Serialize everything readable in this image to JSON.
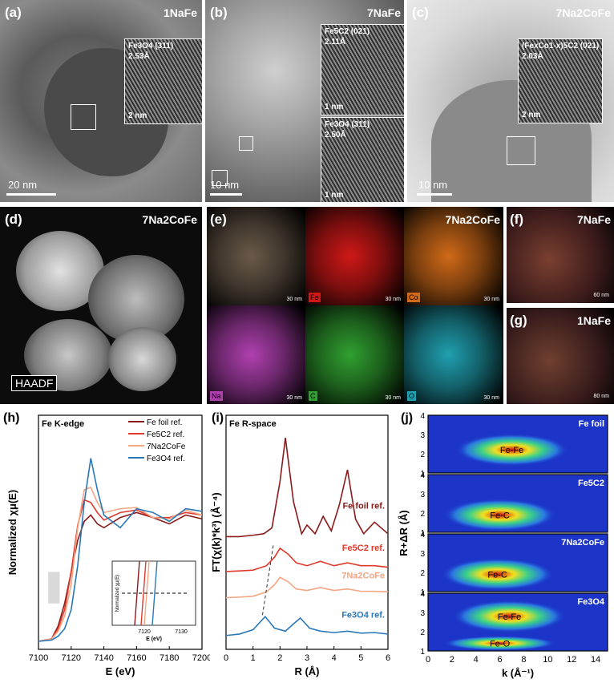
{
  "panel_a": {
    "label": "(a)",
    "sample": "1NaFe",
    "inset_phase": "Fe3O4 (311)",
    "inset_d": "2.53Å",
    "inset_scale": "2 nm",
    "scale": "20 nm"
  },
  "panel_b": {
    "label": "(b)",
    "sample": "7NaFe",
    "inset1_phase": "Fe5C2 (021)",
    "inset1_d": "2.11Å",
    "inset1_scale": "1 nm",
    "inset2_phase": "Fe3O4 (311)",
    "inset2_d": "2.50Å",
    "inset2_scale": "1 nm",
    "scale": "10 nm"
  },
  "panel_c": {
    "label": "(c)",
    "sample": "7Na2CoFe",
    "inset_phase": "(FexCo1-x)5C2 (021)",
    "inset_d": "2.03Å",
    "inset_scale": "2 nm",
    "scale": "10 nm"
  },
  "panel_d": {
    "label": "(d)",
    "sample": "7Na2CoFe",
    "mode": "HAADF"
  },
  "panel_e": {
    "label": "(e)",
    "sample": "7Na2CoFe",
    "maps": [
      {
        "element": "",
        "scale": "30 nm",
        "color": "#6a5a4a"
      },
      {
        "element": "Fe",
        "scale": "30 nm",
        "color": "#d01818"
      },
      {
        "element": "Co",
        "scale": "30 nm",
        "color": "#d06a18"
      },
      {
        "element": "Na",
        "scale": "30 nm",
        "color": "#b040b0"
      },
      {
        "element": "C",
        "scale": "30 nm",
        "color": "#30a030"
      },
      {
        "element": "O",
        "scale": "30 nm",
        "color": "#20a0b0"
      }
    ]
  },
  "panel_f": {
    "label": "(f)",
    "sample": "7NaFe",
    "scale": "60 nm"
  },
  "panel_g": {
    "label": "(g)",
    "sample": "1NaFe",
    "scale": "80 nm"
  },
  "colors": {
    "fe_foil": "#8b1a1a",
    "fe5c2": "#e0392b",
    "na2cofe": "#f4a582",
    "fe3o4": "#2a78b8"
  },
  "chart_data": [
    {
      "type": "line",
      "panel": "(h)",
      "title": "Fe K-edge",
      "xlabel": "E (eV)",
      "ylabel": "Normalized χμ(E)",
      "xlim": [
        7100,
        7200
      ],
      "xticks": [
        7100,
        7120,
        7140,
        7160,
        7180,
        7200
      ],
      "legend": [
        "Fe foil ref.",
        "Fe5C2 ref.",
        "7Na2CoFe",
        "Fe3O4 ref."
      ],
      "series": [
        {
          "name": "Fe foil ref.",
          "x": [
            7100,
            7108,
            7112,
            7116,
            7120,
            7124,
            7128,
            7132,
            7136,
            7140,
            7150,
            7160,
            7170,
            7180,
            7190,
            7200
          ],
          "y": [
            0.0,
            0.02,
            0.12,
            0.3,
            0.55,
            0.8,
            0.95,
            1.0,
            0.93,
            0.9,
            0.98,
            1.02,
            0.98,
            0.93,
            1.0,
            0.97
          ]
        },
        {
          "name": "Fe5C2 ref.",
          "x": [
            7100,
            7108,
            7112,
            7116,
            7120,
            7124,
            7128,
            7132,
            7136,
            7140,
            7150,
            7160,
            7170,
            7180,
            7190,
            7200
          ],
          "y": [
            0.0,
            0.02,
            0.1,
            0.25,
            0.55,
            0.92,
            1.12,
            1.1,
            1.02,
            0.96,
            1.02,
            1.04,
            0.98,
            0.98,
            1.02,
            1.0
          ]
        },
        {
          "name": "7Na2CoFe",
          "x": [
            7100,
            7108,
            7112,
            7116,
            7120,
            7124,
            7128,
            7132,
            7136,
            7140,
            7150,
            7160,
            7170,
            7180,
            7190,
            7200
          ],
          "y": [
            0.0,
            0.02,
            0.08,
            0.2,
            0.45,
            0.9,
            1.2,
            1.22,
            1.1,
            1.02,
            1.05,
            1.06,
            0.98,
            0.97,
            1.04,
            1.0
          ]
        },
        {
          "name": "Fe3O4 ref.",
          "x": [
            7100,
            7108,
            7112,
            7116,
            7120,
            7124,
            7128,
            7132,
            7136,
            7140,
            7150,
            7160,
            7170,
            7180,
            7190,
            7200
          ],
          "y": [
            0.0,
            0.01,
            0.04,
            0.1,
            0.25,
            0.6,
            1.1,
            1.45,
            1.2,
            1.0,
            0.9,
            1.05,
            1.02,
            0.95,
            1.05,
            1.03
          ]
        }
      ],
      "inset": {
        "xlabel": "E (eV)",
        "ylabel": "Normalized χμ(E)",
        "xticks": [
          7120,
          7130
        ]
      }
    },
    {
      "type": "line",
      "panel": "(i)",
      "title": "Fe R-space",
      "xlabel": "R (Å)",
      "ylabel": "FT(χ(k)*k³) (Å⁻⁴)",
      "xlim": [
        0,
        6
      ],
      "xticks": [
        0,
        1,
        2,
        3,
        4,
        5,
        6
      ],
      "series": [
        {
          "name": "Fe foil ref.",
          "x": [
            0,
            0.5,
            1,
            1.4,
            1.7,
            2.0,
            2.2,
            2.5,
            2.8,
            3.0,
            3.3,
            3.6,
            3.9,
            4.2,
            4.5,
            4.8,
            5.1,
            5.5,
            6
          ],
          "y": [
            3.6,
            3.6,
            3.65,
            3.7,
            3.9,
            5.5,
            7.0,
            4.8,
            3.7,
            4.0,
            3.7,
            4.3,
            3.8,
            4.7,
            5.9,
            4.2,
            3.7,
            4.1,
            3.7
          ]
        },
        {
          "name": "Fe5C2 ref.",
          "x": [
            0,
            0.5,
            1,
            1.5,
            1.8,
            2.0,
            2.3,
            2.6,
            3.0,
            3.5,
            4,
            4.5,
            5,
            5.5,
            6
          ],
          "y": [
            2.4,
            2.42,
            2.45,
            2.6,
            2.9,
            3.2,
            3.0,
            2.7,
            2.6,
            2.75,
            2.6,
            2.7,
            2.6,
            2.6,
            2.55
          ]
        },
        {
          "name": "7Na2CoFe",
          "x": [
            0,
            0.5,
            1,
            1.5,
            1.8,
            2.0,
            2.3,
            2.6,
            3.0,
            3.5,
            4,
            4.5,
            5,
            5.5,
            6
          ],
          "y": [
            1.5,
            1.52,
            1.55,
            1.7,
            1.95,
            2.2,
            2.05,
            1.8,
            1.75,
            1.85,
            1.75,
            1.8,
            1.72,
            1.72,
            1.7
          ]
        },
        {
          "name": "Fe3O4 ref.",
          "x": [
            0,
            0.5,
            1,
            1.45,
            1.8,
            2.2,
            2.5,
            2.75,
            3.1,
            3.5,
            4,
            4.5,
            5,
            5.5,
            6
          ],
          "y": [
            0.2,
            0.25,
            0.4,
            0.85,
            0.45,
            0.35,
            0.6,
            0.8,
            0.45,
            0.35,
            0.3,
            0.35,
            0.28,
            0.3,
            0.25
          ]
        }
      ],
      "annotations": [
        "Fe foil ref.",
        "Fe5C2 ref.",
        "7Na2CoFe",
        "Fe3O4 ref."
      ]
    },
    {
      "type": "heatmap",
      "panel": "(j)",
      "xlabel": "k (Å⁻¹)",
      "ylabel": "R+ΔR (Å)",
      "xlim": [
        0,
        15
      ],
      "xticks": [
        0,
        2,
        4,
        6,
        8,
        10,
        12,
        14
      ],
      "ylim": [
        1,
        4
      ],
      "yticks": [
        1,
        2,
        3,
        4
      ],
      "panels": [
        {
          "name": "Fe foil",
          "peaks": [
            {
              "label": "Fe-Fe",
              "k": 7,
              "R": 2.2
            }
          ]
        },
        {
          "name": "Fe5C2",
          "peaks": [
            {
              "label": "Fe-C",
              "k": 6,
              "R": 1.9
            }
          ]
        },
        {
          "name": "7Na2CoFe",
          "peaks": [
            {
              "label": "Fe-C",
              "k": 5.8,
              "R": 1.9
            }
          ]
        },
        {
          "name": "Fe3O4",
          "peaks": [
            {
              "label": "Fe-Fe",
              "k": 6.8,
              "R": 2.8
            },
            {
              "label": "Fe-O",
              "k": 6,
              "R": 1.4
            }
          ]
        }
      ]
    }
  ]
}
